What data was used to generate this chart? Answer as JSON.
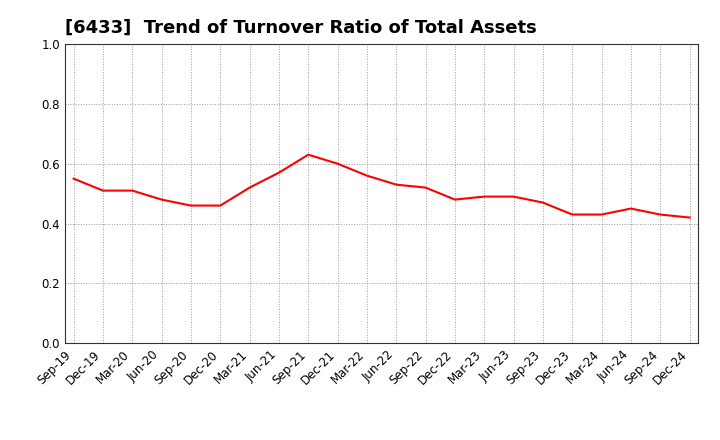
{
  "title": "[6433]  Trend of Turnover Ratio of Total Assets",
  "x_labels": [
    "Sep-19",
    "Dec-19",
    "Mar-20",
    "Jun-20",
    "Sep-20",
    "Dec-20",
    "Mar-21",
    "Jun-21",
    "Sep-21",
    "Dec-21",
    "Mar-22",
    "Jun-22",
    "Sep-22",
    "Dec-22",
    "Mar-23",
    "Jun-23",
    "Sep-23",
    "Dec-23",
    "Mar-24",
    "Jun-24",
    "Sep-24",
    "Dec-24"
  ],
  "values": [
    0.55,
    0.51,
    0.51,
    0.48,
    0.46,
    0.46,
    0.52,
    0.57,
    0.63,
    0.6,
    0.56,
    0.53,
    0.52,
    0.48,
    0.49,
    0.49,
    0.47,
    0.43,
    0.43,
    0.45,
    0.43,
    0.42
  ],
  "line_color": "#FF0000",
  "line_width": 1.5,
  "ylim": [
    0.0,
    1.0
  ],
  "yticks": [
    0.0,
    0.2,
    0.4,
    0.6,
    0.8,
    1.0
  ],
  "grid_color": "#999999",
  "background_color": "#ffffff",
  "title_fontsize": 13,
  "tick_fontsize": 8.5
}
